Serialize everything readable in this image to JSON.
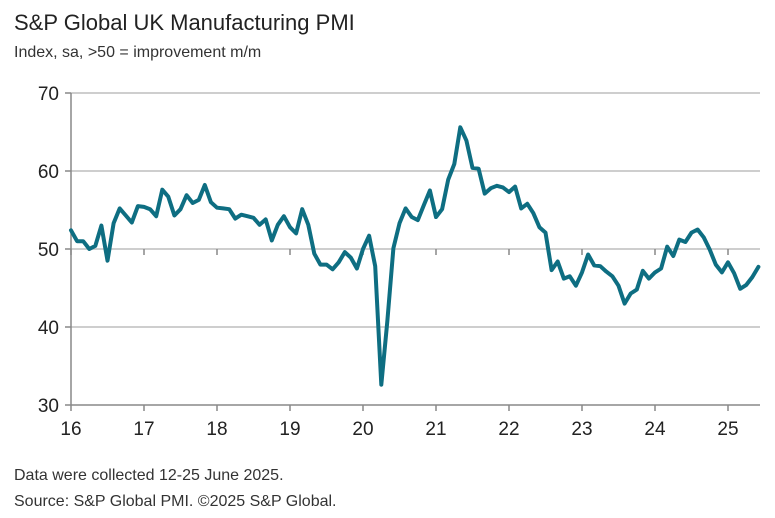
{
  "chart_data": {
    "type": "line",
    "title": "S&P Global UK Manufacturing PMI",
    "subtitle": "Index, sa, >50 = improvement m/m",
    "xlabel": "",
    "ylabel": "",
    "ylim": [
      30,
      70
    ],
    "yticks": [
      "30",
      "40",
      "50",
      "60",
      "70"
    ],
    "xticks": [
      "16",
      "17",
      "18",
      "19",
      "20",
      "21",
      "22",
      "23",
      "24",
      "25"
    ],
    "x_start": "2016-01",
    "x_frequency": "monthly",
    "grid": true,
    "line_color": "#0e6e82",
    "series": [
      {
        "name": "UK Manufacturing PMI",
        "values": [
          52.4,
          51.0,
          51.0,
          50.0,
          50.4,
          53.0,
          48.5,
          53.3,
          55.2,
          54.3,
          53.4,
          55.5,
          55.4,
          55.1,
          54.2,
          57.6,
          56.7,
          54.3,
          55.1,
          56.9,
          55.9,
          56.3,
          58.2,
          56.0,
          55.3,
          55.2,
          55.1,
          53.9,
          54.4,
          54.2,
          54.0,
          53.1,
          53.8,
          51.1,
          53.1,
          54.2,
          52.8,
          52.0,
          55.1,
          53.1,
          49.4,
          48.0,
          48.0,
          47.4,
          48.3,
          49.6,
          48.9,
          47.5,
          50.0,
          51.7,
          47.8,
          32.6,
          40.7,
          50.1,
          53.3,
          55.2,
          54.1,
          53.7,
          55.6,
          57.5,
          54.1,
          55.1,
          58.9,
          60.9,
          65.6,
          63.9,
          60.4,
          60.3,
          57.1,
          57.8,
          58.1,
          57.9,
          57.3,
          58.0,
          55.2,
          55.8,
          54.6,
          52.8,
          52.1,
          47.3,
          48.4,
          46.2,
          46.5,
          45.3,
          47.0,
          49.3,
          47.9,
          47.8,
          47.1,
          46.5,
          45.3,
          43.0,
          44.3,
          44.8,
          47.2,
          46.2,
          47.0,
          47.5,
          50.3,
          49.1,
          51.2,
          50.9,
          52.1,
          52.5,
          51.5,
          49.9,
          48.0,
          47.0,
          48.3,
          46.9,
          44.9,
          45.4,
          46.4,
          47.7
        ]
      }
    ]
  },
  "footer": {
    "line1": "Data were collected 12-25 June 2025.",
    "line2": "Source: S&P Global PMI. ©2025 S&P Global."
  }
}
